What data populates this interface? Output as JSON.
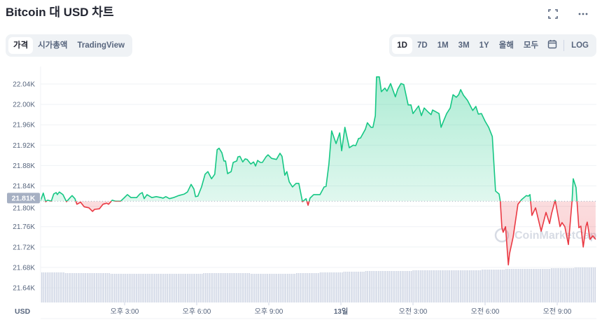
{
  "header": {
    "title": "Bitcoin 대 USD 차트",
    "icons": [
      "fullscreen-icon",
      "more-icon"
    ]
  },
  "view_tabs": [
    {
      "label": "가격",
      "active": true
    },
    {
      "label": "시가총액",
      "active": false
    },
    {
      "label": "TradingView",
      "active": false
    }
  ],
  "range_tabs": [
    {
      "label": "1D",
      "active": true
    },
    {
      "label": "7D",
      "active": false
    },
    {
      "label": "1M",
      "active": false
    },
    {
      "label": "3M",
      "active": false
    },
    {
      "label": "1Y",
      "active": false
    },
    {
      "label": "올해",
      "active": false
    },
    {
      "label": "모두",
      "active": false
    }
  ],
  "calendar_icon": "calendar-icon",
  "log_label": "LOG",
  "watermark": "CoinMarketCap",
  "colors": {
    "up": "#16c784",
    "down": "#ea3943",
    "grid": "#eff2f5",
    "axis_text": "#58667e",
    "price_tag": "#a6b0c3",
    "volume": "#cfd6e4"
  },
  "chart_data": {
    "type": "line",
    "currency_label": "USD",
    "reference_price": 21810,
    "reference_label": "21.81K",
    "ylim": [
      21610,
      22075
    ],
    "yticks": [
      {
        "value": 22040,
        "label": "22.04K"
      },
      {
        "value": 22000,
        "label": "22.00K"
      },
      {
        "value": 21960,
        "label": "21.96K"
      },
      {
        "value": 21920,
        "label": "21.92K"
      },
      {
        "value": 21880,
        "label": "21.88K"
      },
      {
        "value": 21840,
        "label": "21.84K"
      },
      {
        "value": 21800,
        "label": "21.80K"
      },
      {
        "value": 21760,
        "label": "21.76K"
      },
      {
        "value": 21720,
        "label": "21.72K"
      },
      {
        "value": 21680,
        "label": "21.68K"
      },
      {
        "value": 21640,
        "label": "21.64K"
      }
    ],
    "xticks": [
      {
        "time": "12 15:00",
        "label": "오후 3:00"
      },
      {
        "time": "12 18:00",
        "label": "오후 6:00"
      },
      {
        "time": "12 21:00",
        "label": "오후 9:00"
      },
      {
        "time": "13 00:00",
        "label": "13일"
      },
      {
        "time": "13 03:00",
        "label": "오전 3:00"
      },
      {
        "time": "13 06:00",
        "label": "오전 6:00"
      },
      {
        "time": "13 09:00",
        "label": "오전 9:00"
      }
    ],
    "grid": true,
    "points": [
      [
        "12 11:30",
        21810
      ],
      [
        "12 11:37",
        21826
      ],
      [
        "12 11:43",
        21809
      ],
      [
        "12 11:48",
        21812
      ],
      [
        "12 11:57",
        21810
      ],
      [
        "12 12:03",
        21824
      ],
      [
        "12 12:09",
        21827
      ],
      [
        "12 12:12",
        21823
      ],
      [
        "12 12:17",
        21828
      ],
      [
        "12 12:26",
        21823
      ],
      [
        "12 12:35",
        21809
      ],
      [
        "12 12:44",
        21817
      ],
      [
        "12 12:49",
        21821
      ],
      [
        "12 12:56",
        21815
      ],
      [
        "12 13:01",
        21804
      ],
      [
        "12 13:10",
        21808
      ],
      [
        "12 13:19",
        21799
      ],
      [
        "12 13:31",
        21797
      ],
      [
        "12 13:40",
        21790
      ],
      [
        "12 13:45",
        21794
      ],
      [
        "12 13:57",
        21795
      ],
      [
        "12 14:06",
        21804
      ],
      [
        "12 14:15",
        21806
      ],
      [
        "12 14:20",
        21804
      ],
      [
        "12 14:29",
        21812
      ],
      [
        "12 14:37",
        21810
      ],
      [
        "12 14:50",
        21810
      ],
      [
        "12 14:58",
        21816
      ],
      [
        "12 15:07",
        21823
      ],
      [
        "12 15:16",
        21817
      ],
      [
        "12 15:30",
        21817
      ],
      [
        "12 15:38",
        21824
      ],
      [
        "12 15:44",
        21827
      ],
      [
        "12 15:49",
        21815
      ],
      [
        "12 15:56",
        21823
      ],
      [
        "12 16:08",
        21817
      ],
      [
        "12 16:19",
        21819
      ],
      [
        "12 16:31",
        21817
      ],
      [
        "12 16:36",
        21816
      ],
      [
        "12 16:43",
        21819
      ],
      [
        "12 16:52",
        21815
      ],
      [
        "12 17:02",
        21817
      ],
      [
        "12 17:15",
        21821
      ],
      [
        "12 17:29",
        21824
      ],
      [
        "12 17:37",
        21828
      ],
      [
        "12 17:46",
        21843
      ],
      [
        "12 17:53",
        21834
      ],
      [
        "12 17:57",
        21819
      ],
      [
        "12 18:03",
        21820
      ],
      [
        "12 18:12",
        21838
      ],
      [
        "12 18:21",
        21863
      ],
      [
        "12 18:28",
        21868
      ],
      [
        "12 18:37",
        21854
      ],
      [
        "12 18:45",
        21863
      ],
      [
        "12 18:51",
        21911
      ],
      [
        "12 18:56",
        21914
      ],
      [
        "12 19:03",
        21905
      ],
      [
        "12 19:08",
        21889
      ],
      [
        "12 19:12",
        21889
      ],
      [
        "12 19:17",
        21864
      ],
      [
        "12 19:26",
        21868
      ],
      [
        "12 19:31",
        21886
      ],
      [
        "12 19:40",
        21889
      ],
      [
        "12 19:43",
        21897
      ],
      [
        "12 19:48",
        21898
      ],
      [
        "12 19:55",
        21887
      ],
      [
        "12 20:01",
        21893
      ],
      [
        "12 20:06",
        21892
      ],
      [
        "12 20:15",
        21883
      ],
      [
        "12 20:22",
        21887
      ],
      [
        "12 20:27",
        21879
      ],
      [
        "12 20:32",
        21890
      ],
      [
        "12 20:39",
        21886
      ],
      [
        "12 20:44",
        21886
      ],
      [
        "12 20:53",
        21897
      ],
      [
        "12 20:58",
        21901
      ],
      [
        "12 21:07",
        21894
      ],
      [
        "12 21:19",
        21892
      ],
      [
        "12 21:28",
        21904
      ],
      [
        "12 21:33",
        21898
      ],
      [
        "12 21:40",
        21861
      ],
      [
        "12 21:45",
        21868
      ],
      [
        "12 21:51",
        21848
      ],
      [
        "12 21:59",
        21838
      ],
      [
        "12 22:08",
        21845
      ],
      [
        "12 22:15",
        21845
      ],
      [
        "12 22:24",
        21809
      ],
      [
        "12 22:33",
        21815
      ],
      [
        "12 22:38",
        21802
      ],
      [
        "12 22:43",
        21816
      ],
      [
        "12 22:52",
        21823
      ],
      [
        "12 23:08",
        21823
      ],
      [
        "12 23:18",
        21838
      ],
      [
        "12 23:23",
        21839
      ],
      [
        "12 23:30",
        21882
      ],
      [
        "12 23:37",
        21948
      ],
      [
        "12 23:48",
        21923
      ],
      [
        "12 23:57",
        21944
      ],
      [
        "13 00:02",
        21909
      ],
      [
        "13 00:10",
        21955
      ],
      [
        "13 00:21",
        21915
      ],
      [
        "13 00:31",
        21920
      ],
      [
        "13 00:37",
        21919
      ],
      [
        "13 00:44",
        21933
      ],
      [
        "13 00:49",
        21934
      ],
      [
        "13 01:01",
        21951
      ],
      [
        "13 01:06",
        21964
      ],
      [
        "13 01:15",
        21955
      ],
      [
        "13 01:20",
        21955
      ],
      [
        "13 01:26",
        21978
      ],
      [
        "13 01:29",
        22054
      ],
      [
        "13 01:36",
        22054
      ],
      [
        "13 01:41",
        22025
      ],
      [
        "13 01:50",
        22032
      ],
      [
        "13 01:55",
        22026
      ],
      [
        "13 02:04",
        22041
      ],
      [
        "13 02:16",
        22015
      ],
      [
        "13 02:22",
        22030
      ],
      [
        "13 02:30",
        22041
      ],
      [
        "13 02:37",
        22039
      ],
      [
        "13 02:48",
        21999
      ],
      [
        "13 02:55",
        21999
      ],
      [
        "13 03:00",
        21982
      ],
      [
        "13 03:14",
        21997
      ],
      [
        "13 03:21",
        21978
      ],
      [
        "13 03:28",
        21993
      ],
      [
        "13 03:38",
        21985
      ],
      [
        "13 03:45",
        21980
      ],
      [
        "13 03:49",
        21989
      ],
      [
        "13 04:05",
        21982
      ],
      [
        "13 04:10",
        21955
      ],
      [
        "13 04:17",
        21969
      ],
      [
        "13 04:24",
        21982
      ],
      [
        "13 04:33",
        21993
      ],
      [
        "13 04:40",
        22019
      ],
      [
        "13 04:48",
        22014
      ],
      [
        "13 04:54",
        22019
      ],
      [
        "13 04:59",
        22029
      ],
      [
        "13 05:06",
        22018
      ],
      [
        "13 05:16",
        22008
      ],
      [
        "13 05:29",
        21988
      ],
      [
        "13 05:37",
        21996
      ],
      [
        "13 05:43",
        21981
      ],
      [
        "13 05:51",
        21982
      ],
      [
        "13 06:00",
        21967
      ],
      [
        "13 06:09",
        21955
      ],
      [
        "13 06:18",
        21937
      ],
      [
        "13 06:26",
        21830
      ],
      [
        "13 06:35",
        21824
      ],
      [
        "13 06:38",
        21810
      ],
      [
        "13 06:42",
        21758
      ],
      [
        "13 06:45",
        21749
      ],
      [
        "13 06:51",
        21760
      ],
      [
        "13 06:58",
        21685
      ],
      [
        "13 07:01",
        21707
      ],
      [
        "13 07:10",
        21740
      ],
      [
        "13 07:22",
        21804
      ],
      [
        "13 07:31",
        21813
      ],
      [
        "13 07:43",
        21821
      ],
      [
        "13 07:48",
        21820
      ],
      [
        "13 07:52",
        21823
      ],
      [
        "13 07:57",
        21782
      ],
      [
        "13 08:06",
        21797
      ],
      [
        "13 08:20",
        21751
      ],
      [
        "13 08:32",
        21788
      ],
      [
        "13 08:41",
        21766
      ],
      [
        "13 08:46",
        21786
      ],
      [
        "13 08:55",
        21812
      ],
      [
        "13 09:07",
        21760
      ],
      [
        "13 09:12",
        21768
      ],
      [
        "13 09:19",
        21760
      ],
      [
        "13 09:28",
        21725
      ],
      [
        "13 09:37",
        21810
      ],
      [
        "13 09:40",
        21854
      ],
      [
        "13 09:47",
        21837
      ],
      [
        "13 09:54",
        21758
      ],
      [
        "13 09:59",
        21761
      ],
      [
        "13 10:05",
        21720
      ],
      [
        "13 10:12",
        21761
      ],
      [
        "13 10:15",
        21769
      ],
      [
        "13 10:22",
        21735
      ],
      [
        "13 10:29",
        21742
      ],
      [
        "13 10:36",
        21735
      ]
    ],
    "volume_relative": [
      43,
      42,
      42,
      41,
      41,
      41,
      41,
      42,
      42,
      41,
      41,
      42,
      43,
      44,
      45,
      45,
      46,
      46,
      46,
      47,
      48,
      48,
      49,
      50
    ]
  }
}
